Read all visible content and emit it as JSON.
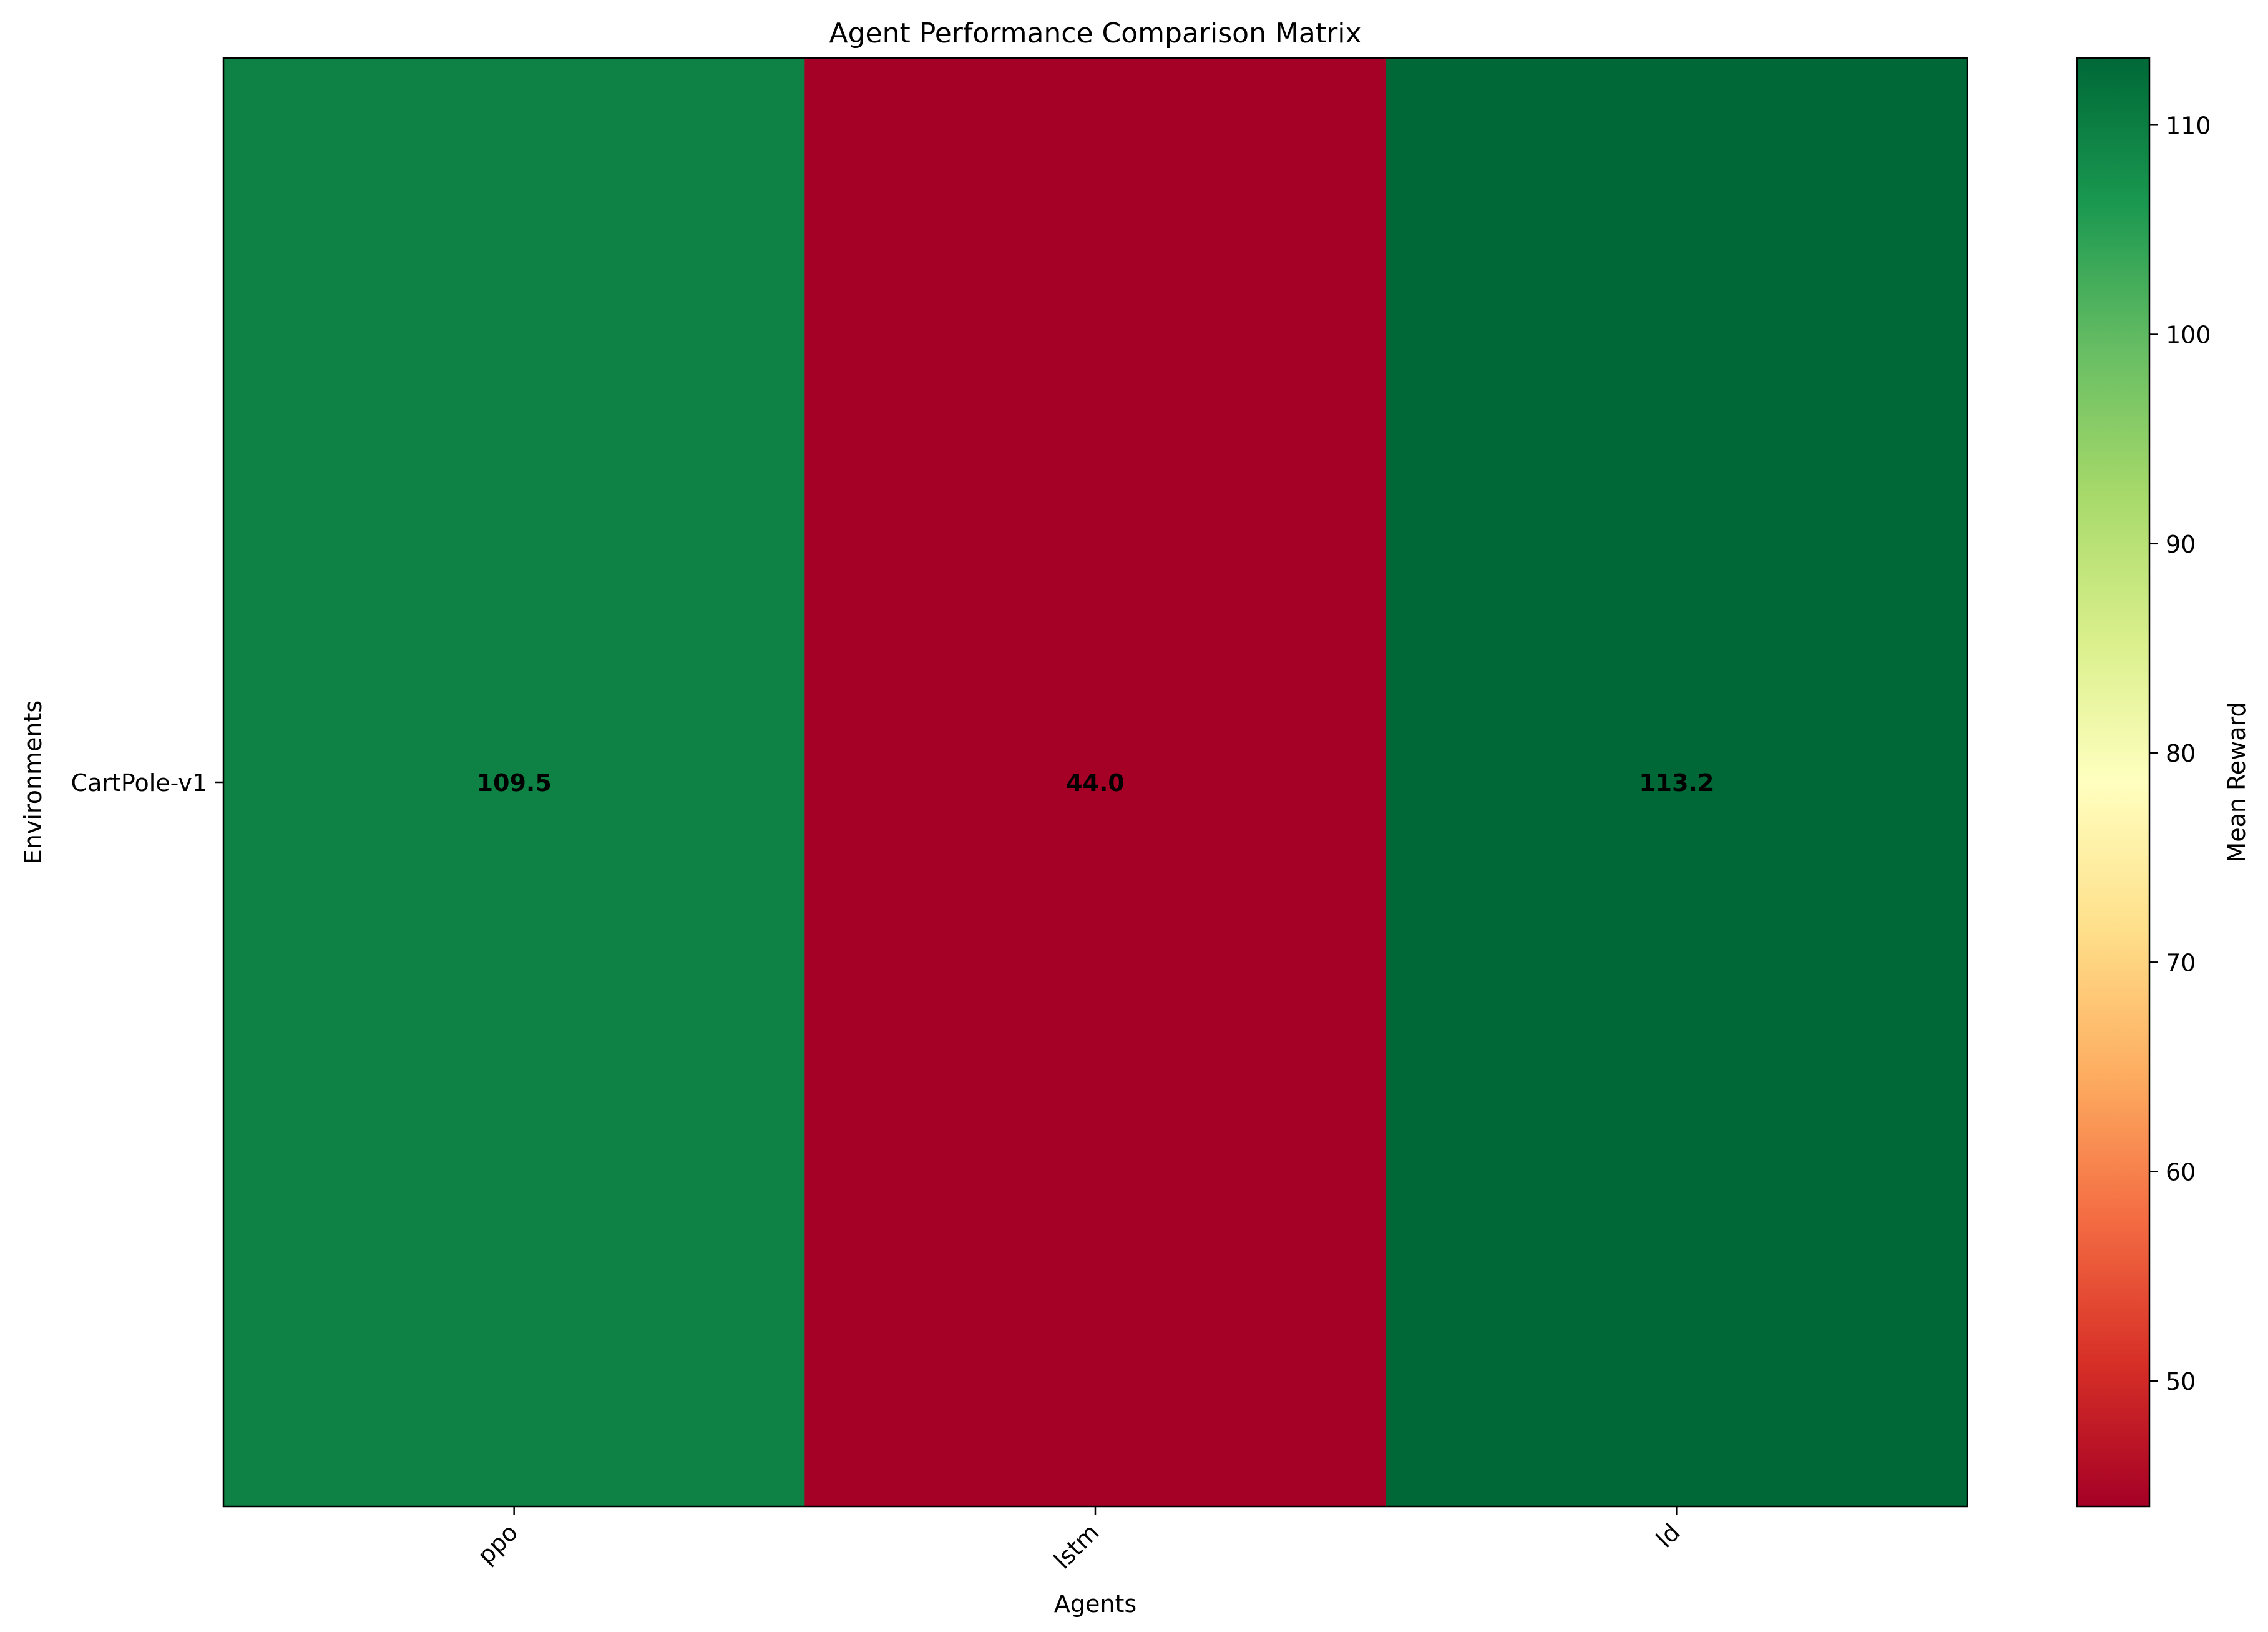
{
  "chart_data": {
    "type": "heatmap",
    "title": "Agent Performance Comparison Matrix",
    "xlabel": "Agents",
    "ylabel": "Environments",
    "x_categories": [
      "ppo",
      "lstm",
      "ld"
    ],
    "y_categories": [
      "CartPole-v1"
    ],
    "values": [
      [
        109.5,
        44.0,
        113.2
      ]
    ],
    "value_labels": [
      [
        "109.5",
        "44.0",
        "113.2"
      ]
    ],
    "colorbar": {
      "label": "Mean Reward",
      "range": [
        44.0,
        113.2
      ],
      "ticks": [
        50,
        60,
        70,
        80,
        90,
        100,
        110
      ],
      "colormap": "RdYlGn"
    },
    "grid": false,
    "legend": "colorbar-right"
  }
}
